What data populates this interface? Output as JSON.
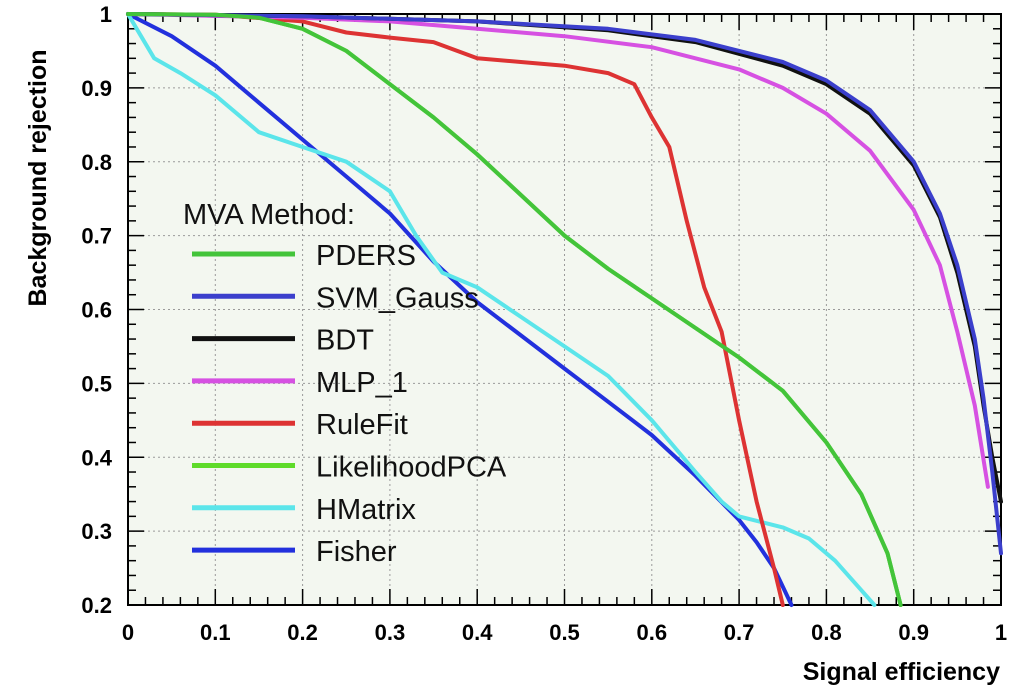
{
  "chart_data": {
    "type": "line",
    "title": "",
    "xlabel": "Signal efficiency",
    "ylabel": "Background rejection",
    "xlim": [
      0,
      1
    ],
    "ylim": [
      0.2,
      1
    ],
    "grid": true,
    "legend_title": "MVA Method:",
    "legend_placement": "center-left",
    "x_ticks": [
      "0",
      "0.1",
      "0.2",
      "0.3",
      "0.4",
      "0.5",
      "0.6",
      "0.7",
      "0.8",
      "0.9",
      "1"
    ],
    "y_ticks": [
      "0.2",
      "0.3",
      "0.4",
      "0.5",
      "0.6",
      "0.7",
      "0.8",
      "0.9",
      "1"
    ],
    "series": [
      {
        "name": "PDERS",
        "color": "#43c43a",
        "x": [
          0,
          0.1,
          0.15,
          0.2,
          0.25,
          0.3,
          0.35,
          0.4,
          0.45,
          0.5,
          0.55,
          0.6,
          0.65,
          0.7,
          0.75,
          0.8,
          0.84,
          0.87,
          0.885
        ],
        "y": [
          1.0,
          0.999,
          0.995,
          0.98,
          0.95,
          0.905,
          0.86,
          0.81,
          0.755,
          0.7,
          0.655,
          0.615,
          0.575,
          0.535,
          0.49,
          0.42,
          0.35,
          0.27,
          0.2
        ]
      },
      {
        "name": "SVM_Gauss",
        "color": "#3b3fcc",
        "x": [
          0,
          0.2,
          0.4,
          0.55,
          0.65,
          0.75,
          0.8,
          0.85,
          0.9,
          0.93,
          0.95,
          0.97,
          0.98,
          0.99,
          1.0
        ],
        "y": [
          1.0,
          0.997,
          0.99,
          0.98,
          0.965,
          0.935,
          0.91,
          0.87,
          0.8,
          0.73,
          0.66,
          0.56,
          0.48,
          0.38,
          0.27
        ]
      },
      {
        "name": "BDT",
        "color": "#111111",
        "x": [
          0,
          0.2,
          0.4,
          0.55,
          0.65,
          0.75,
          0.8,
          0.85,
          0.9,
          0.93,
          0.95,
          0.97,
          0.98,
          0.99,
          1.0
        ],
        "y": [
          1.0,
          0.997,
          0.99,
          0.978,
          0.962,
          0.93,
          0.905,
          0.865,
          0.795,
          0.725,
          0.65,
          0.55,
          0.47,
          0.4,
          0.34
        ]
      },
      {
        "name": "MLP_1",
        "color": "#d651e2",
        "x": [
          0,
          0.2,
          0.3,
          0.4,
          0.5,
          0.6,
          0.7,
          0.75,
          0.8,
          0.85,
          0.9,
          0.93,
          0.95,
          0.97,
          0.985
        ],
        "y": [
          1.0,
          0.995,
          0.99,
          0.98,
          0.97,
          0.955,
          0.925,
          0.9,
          0.865,
          0.815,
          0.735,
          0.66,
          0.57,
          0.47,
          0.36
        ]
      },
      {
        "name": "RuleFit",
        "color": "#dd3333",
        "x": [
          0,
          0.1,
          0.2,
          0.25,
          0.3,
          0.35,
          0.4,
          0.45,
          0.5,
          0.55,
          0.58,
          0.6,
          0.62,
          0.64,
          0.66,
          0.68,
          0.7,
          0.72,
          0.74,
          0.75
        ],
        "y": [
          1.0,
          0.999,
          0.99,
          0.975,
          0.968,
          0.962,
          0.94,
          0.935,
          0.93,
          0.92,
          0.905,
          0.86,
          0.82,
          0.72,
          0.63,
          0.57,
          0.45,
          0.34,
          0.25,
          0.2
        ]
      },
      {
        "name": "LikelihoodPCA",
        "color": "#5edb2a",
        "x": [
          0,
          0.1,
          0.15,
          0.2,
          0.25,
          0.3,
          0.35,
          0.4,
          0.45,
          0.5,
          0.55,
          0.6,
          0.65,
          0.7,
          0.75,
          0.8,
          0.84,
          0.87,
          0.885
        ],
        "y": [
          1.0,
          0.999,
          0.995,
          0.98,
          0.95,
          0.905,
          0.86,
          0.81,
          0.755,
          0.7,
          0.655,
          0.615,
          0.575,
          0.535,
          0.49,
          0.42,
          0.35,
          0.27,
          0.2
        ]
      },
      {
        "name": "HMatrix",
        "color": "#5be5ea",
        "x": [
          0,
          0.01,
          0.03,
          0.06,
          0.1,
          0.15,
          0.2,
          0.25,
          0.3,
          0.33,
          0.36,
          0.4,
          0.45,
          0.5,
          0.55,
          0.6,
          0.65,
          0.68,
          0.7,
          0.75,
          0.78,
          0.81,
          0.84,
          0.855
        ],
        "y": [
          1.0,
          0.98,
          0.94,
          0.92,
          0.89,
          0.84,
          0.82,
          0.8,
          0.76,
          0.7,
          0.65,
          0.63,
          0.59,
          0.55,
          0.51,
          0.45,
          0.38,
          0.34,
          0.32,
          0.305,
          0.29,
          0.26,
          0.22,
          0.2
        ]
      },
      {
        "name": "Fisher",
        "color": "#2230dd",
        "x": [
          0,
          0.05,
          0.1,
          0.15,
          0.2,
          0.25,
          0.3,
          0.35,
          0.4,
          0.45,
          0.5,
          0.55,
          0.6,
          0.65,
          0.7,
          0.72,
          0.74,
          0.76
        ],
        "y": [
          1.0,
          0.97,
          0.93,
          0.88,
          0.83,
          0.78,
          0.73,
          0.665,
          0.61,
          0.565,
          0.52,
          0.475,
          0.43,
          0.375,
          0.315,
          0.285,
          0.25,
          0.2
        ]
      }
    ]
  }
}
